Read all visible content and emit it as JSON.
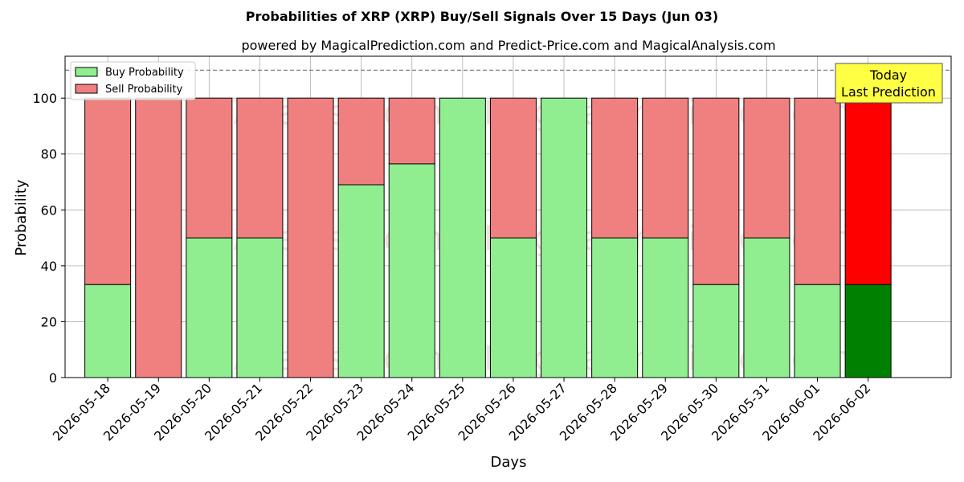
{
  "chart_data": {
    "type": "bar",
    "stacked": true,
    "title": "Probabilities of XRP (XRP) Buy/Sell Signals Over 15 Days (Jun 03)",
    "subtitle": "powered by MagicalPrediction.com and Predict-Price.com and MagicalAnalysis.com",
    "xlabel": "Days",
    "ylabel": "Probability",
    "ylim": [
      0,
      115
    ],
    "yticks": [
      0,
      20,
      40,
      60,
      80,
      100
    ],
    "grid": true,
    "legend_position": "top-left",
    "reference_line": 110,
    "categories": [
      "2026-05-18",
      "2026-05-19",
      "2026-05-20",
      "2026-05-21",
      "2026-05-22",
      "2026-05-23",
      "2026-05-24",
      "2026-05-25",
      "2026-05-26",
      "2026-05-27",
      "2026-05-28",
      "2026-05-29",
      "2026-05-30",
      "2026-05-31",
      "2026-06-01",
      "2026-06-02"
    ],
    "series": [
      {
        "name": "Buy Probability",
        "color": "#90ee90",
        "highlight_color": "#008000",
        "values": [
          33.3,
          0,
          50,
          50,
          0,
          69,
          76.5,
          100,
          50,
          100,
          50,
          50,
          33.3,
          50,
          33.3,
          33.3
        ]
      },
      {
        "name": "Sell Probability",
        "color": "#f08080",
        "highlight_color": "#ff0000",
        "values": [
          66.7,
          100,
          50,
          50,
          100,
          31,
          23.5,
          0,
          50,
          0,
          50,
          50,
          66.7,
          50,
          66.7,
          66.7
        ]
      }
    ],
    "highlight_index": 15,
    "annotation": {
      "line1": "Today",
      "line2": "Last Prediction",
      "background": "#ffff44"
    },
    "watermarks": [
      "MagicalAnalysis.com",
      "MagicalPrediction.com"
    ]
  }
}
